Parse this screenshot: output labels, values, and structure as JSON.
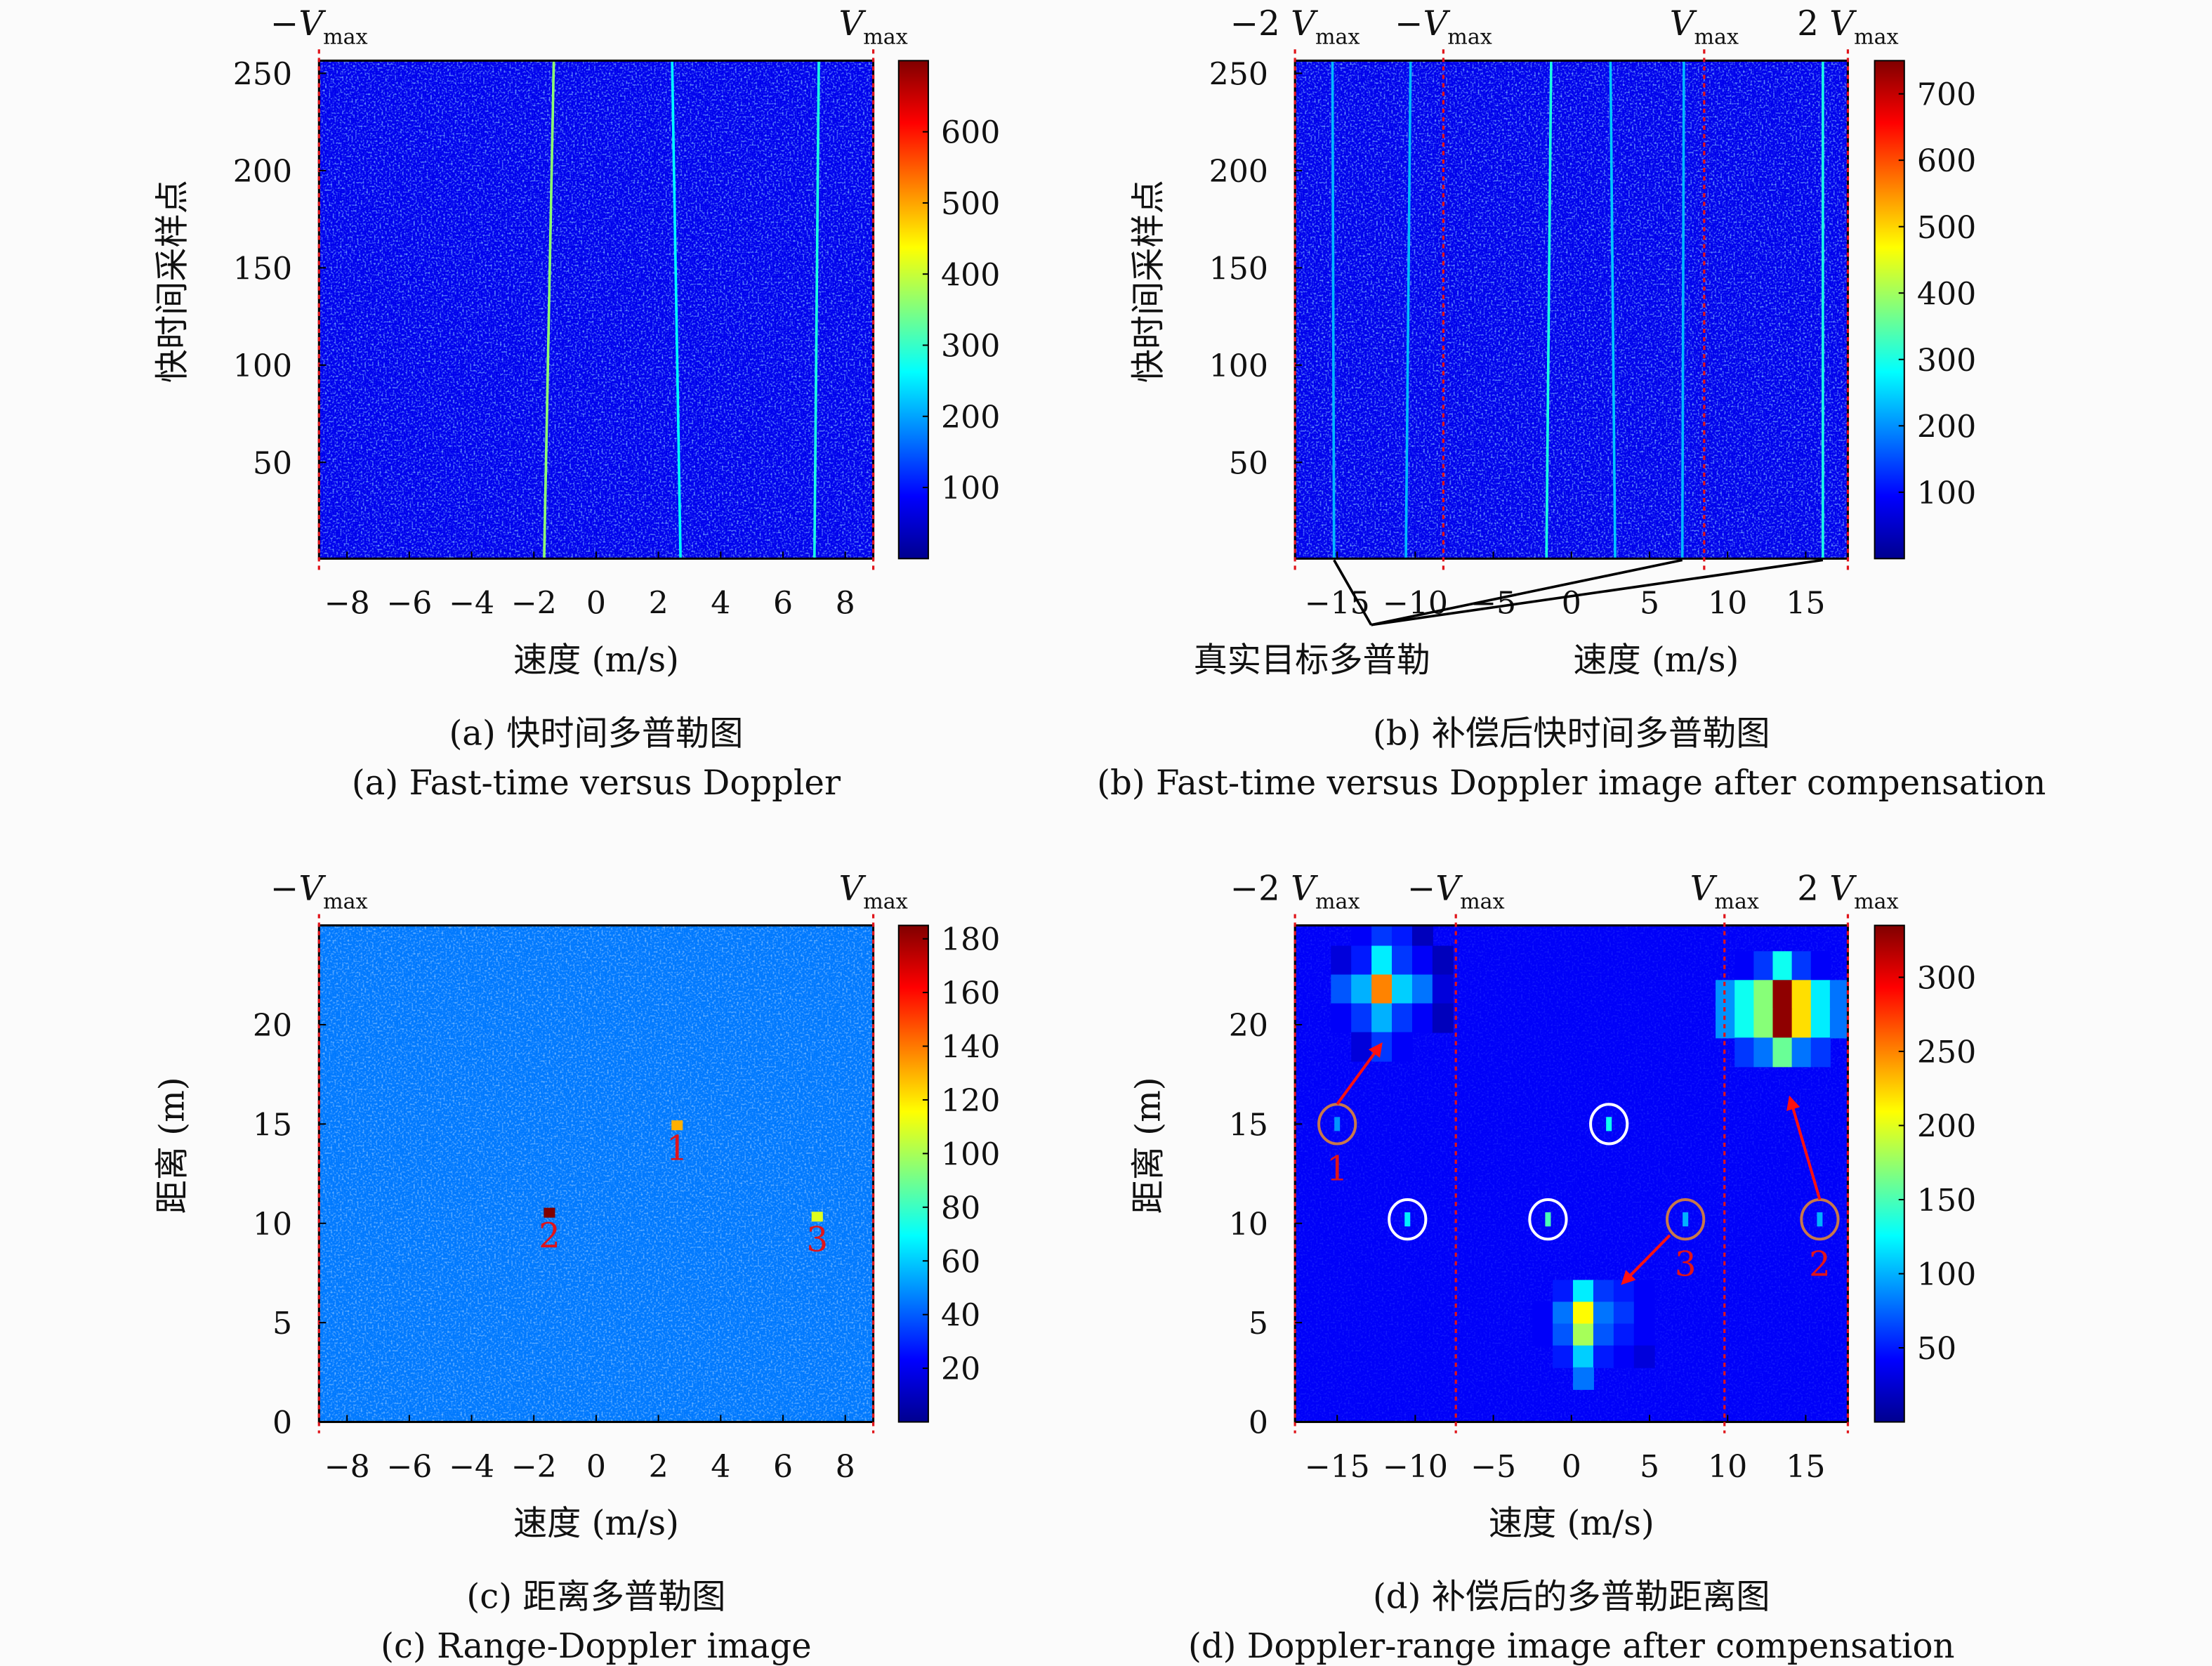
{
  "colors": {
    "marker_line": "#e0141a",
    "arrow": "#ff1010",
    "circle_white": "#ffffff",
    "circle_orange": "#c8784a",
    "frame": "#000000"
  },
  "chart_data": [
    {
      "type": "heatmap",
      "caption_zh": "(a) 快时间多普勒图",
      "caption_en": "(a) Fast-time versus Doppler",
      "xlabel": "速度 (m/s)",
      "ylabel": "快时间采样点",
      "xlim": [
        -8.9,
        8.9
      ],
      "ylim": [
        0.5,
        256.5
      ],
      "xticks": [
        -8,
        -6,
        -4,
        -2,
        0,
        2,
        4,
        6,
        8
      ],
      "yticks": [
        50,
        100,
        150,
        200,
        250
      ],
      "colorbar": {
        "colormap": "jet",
        "clim": [
          0,
          700
        ],
        "ticks": [
          100,
          200,
          300,
          400,
          500,
          600
        ]
      },
      "background_level": 75,
      "velocity_markers": [
        {
          "value": -8.9,
          "coef": "−",
          "symbol": "V",
          "sub": "max"
        },
        {
          "value": 8.9,
          "coef": "",
          "symbol": "V",
          "sub": "max"
        }
      ],
      "target_tracks": [
        {
          "x_bottom": -1.67,
          "x_top": -1.36,
          "level": 360
        },
        {
          "x_bottom": 2.71,
          "x_top": 2.44,
          "level": 260
        },
        {
          "x_bottom": 7.01,
          "x_top": 7.15,
          "level": 280
        }
      ]
    },
    {
      "type": "heatmap",
      "caption_zh": "(b) 补偿后快时间多普勒图",
      "caption_en": "(b) Fast-time versus Doppler image after compensation",
      "xlabel": "速度 (m/s)",
      "ylabel": "快时间采样点",
      "xlim": [
        -17.7,
        17.7
      ],
      "ylim": [
        0.5,
        256.5
      ],
      "xticks": [
        -15,
        -10,
        -5,
        0,
        5,
        10,
        15
      ],
      "yticks": [
        50,
        100,
        150,
        200,
        250
      ],
      "colorbar": {
        "colormap": "jet",
        "clim": [
          0,
          750
        ],
        "ticks": [
          100,
          200,
          300,
          400,
          500,
          600,
          700
        ]
      },
      "background_level": 80,
      "velocity_markers": [
        {
          "value": -17.7,
          "coef": "−2 ",
          "symbol": "V",
          "sub": "max"
        },
        {
          "value": -8.2,
          "coef": "−",
          "symbol": "V",
          "sub": "max"
        },
        {
          "value": 8.5,
          "coef": "",
          "symbol": "V",
          "sub": "max"
        },
        {
          "value": 17.7,
          "coef": "2 ",
          "symbol": "V",
          "sub": "max"
        }
      ],
      "target_tracks": [
        {
          "x_bottom": -15.2,
          "x_top": -15.3,
          "level": 230
        },
        {
          "x_bottom": -10.6,
          "x_top": -10.3,
          "level": 230
        },
        {
          "x_bottom": -1.6,
          "x_top": -1.3,
          "level": 300
        },
        {
          "x_bottom": 2.8,
          "x_top": 2.5,
          "level": 240
        },
        {
          "x_bottom": 7.1,
          "x_top": 7.2,
          "level": 230
        },
        {
          "x_bottom": 16.1,
          "x_top": 16.1,
          "level": 300
        }
      ],
      "annotation": {
        "text": "真实目标多普勒",
        "points_to_x": [
          -15.2,
          7.1,
          16.1
        ]
      }
    },
    {
      "type": "heatmap",
      "caption_zh": "(c) 距离多普勒图",
      "caption_en": "(c) Range-Doppler image",
      "xlabel": "速度 (m/s)",
      "ylabel": "距离 (m)",
      "xlim": [
        -8.9,
        8.9
      ],
      "ylim": [
        0,
        25
      ],
      "xticks": [
        -8,
        -6,
        -4,
        -2,
        0,
        2,
        4,
        6,
        8
      ],
      "yticks": [
        0,
        5,
        10,
        15,
        20
      ],
      "colorbar": {
        "colormap": "jet",
        "clim": [
          0,
          185
        ],
        "ticks": [
          20,
          40,
          60,
          80,
          100,
          120,
          140,
          160,
          180
        ]
      },
      "background_level": 45,
      "velocity_markers": [
        {
          "value": -8.9,
          "coef": "−",
          "symbol": "V",
          "sub": "max"
        },
        {
          "value": 8.9,
          "coef": "",
          "symbol": "V",
          "sub": "max"
        }
      ],
      "targets": [
        {
          "x": 2.6,
          "y": 14.9,
          "level": 130,
          "label": "1"
        },
        {
          "x": -1.5,
          "y": 10.5,
          "level": 185,
          "label": "2"
        },
        {
          "x": 7.1,
          "y": 10.3,
          "level": 110,
          "label": "3"
        }
      ]
    },
    {
      "type": "heatmap",
      "caption_zh": "(d) 补偿后的多普勒距离图",
      "caption_en": "(d) Doppler-range image after compensation",
      "xlabel": "速度 (m/s)",
      "ylabel": "距离 (m)",
      "xlim": [
        -17.7,
        17.7
      ],
      "ylim": [
        0,
        25
      ],
      "xticks": [
        -15,
        -10,
        -5,
        0,
        5,
        10,
        15
      ],
      "yticks": [
        0,
        5,
        10,
        15,
        20
      ],
      "colorbar": {
        "colormap": "jet",
        "clim": [
          0,
          335
        ],
        "ticks": [
          50,
          100,
          150,
          200,
          250,
          300
        ]
      },
      "background_level": 40,
      "velocity_markers": [
        {
          "value": -17.7,
          "coef": "−2 ",
          "symbol": "V",
          "sub": "max"
        },
        {
          "value": -7.4,
          "coef": "−",
          "symbol": "V",
          "sub": "max"
        },
        {
          "value": 9.8,
          "coef": "",
          "symbol": "V",
          "sub": "max"
        },
        {
          "value": 17.7,
          "coef": "2 ",
          "symbol": "V",
          "sub": "max"
        }
      ],
      "blobs": [
        {
          "center": [
            -11.5,
            21.8
          ],
          "cell": [
            1.3,
            1.45
          ],
          "values": [
            [
              0,
              40,
              60,
              50,
              20,
              0
            ],
            [
              30,
              50,
              120,
              60,
              40,
              20
            ],
            [
              70,
              100,
              250,
              110,
              80,
              30
            ],
            [
              40,
              60,
              100,
              60,
              40,
              20
            ],
            [
              0,
              30,
              60,
              40,
              0,
              0
            ]
          ]
        },
        {
          "center": [
            13.5,
            20.8
          ],
          "cell": [
            1.22,
            1.45
          ],
          "values": [
            [
              0,
              40,
              60,
              130,
              60,
              40,
              0
            ],
            [
              90,
              130,
              170,
              330,
              220,
              120,
              80
            ],
            [
              90,
              130,
              170,
              330,
              220,
              120,
              80
            ],
            [
              0,
              60,
              80,
              160,
              80,
              60,
              0
            ]
          ]
        },
        {
          "center": [
            1.4,
            4.4
          ],
          "cell": [
            1.3,
            1.1
          ],
          "values": [
            [
              0,
              50,
              120,
              60,
              50,
              40
            ],
            [
              40,
              80,
              210,
              80,
              60,
              40
            ],
            [
              40,
              70,
              180,
              70,
              50,
              40
            ],
            [
              0,
              50,
              110,
              50,
              40,
              30
            ],
            [
              0,
              0,
              80,
              0,
              0,
              0
            ]
          ]
        }
      ],
      "circles": [
        {
          "x": -15.0,
          "y": 15.0,
          "style": "orange",
          "label": "1",
          "level": 90
        },
        {
          "x": -10.5,
          "y": 10.2,
          "style": "white",
          "label": "",
          "level": 120
        },
        {
          "x": -1.5,
          "y": 10.2,
          "style": "white",
          "label": "",
          "level": 150
        },
        {
          "x": 2.4,
          "y": 15.0,
          "style": "white",
          "label": "",
          "level": 130
        },
        {
          "x": 7.3,
          "y": 10.2,
          "style": "orange",
          "label": "3",
          "level": 100
        },
        {
          "x": 15.9,
          "y": 10.2,
          "style": "orange",
          "label": "2",
          "level": 100
        }
      ],
      "arrows": [
        {
          "from": [
            -15.0,
            16.0
          ],
          "to": [
            -12.2,
            19.0
          ]
        },
        {
          "from": [
            15.9,
            11.2
          ],
          "to": [
            14.0,
            16.3
          ]
        },
        {
          "from": [
            6.3,
            9.4
          ],
          "to": [
            3.3,
            7.0
          ]
        }
      ]
    }
  ]
}
